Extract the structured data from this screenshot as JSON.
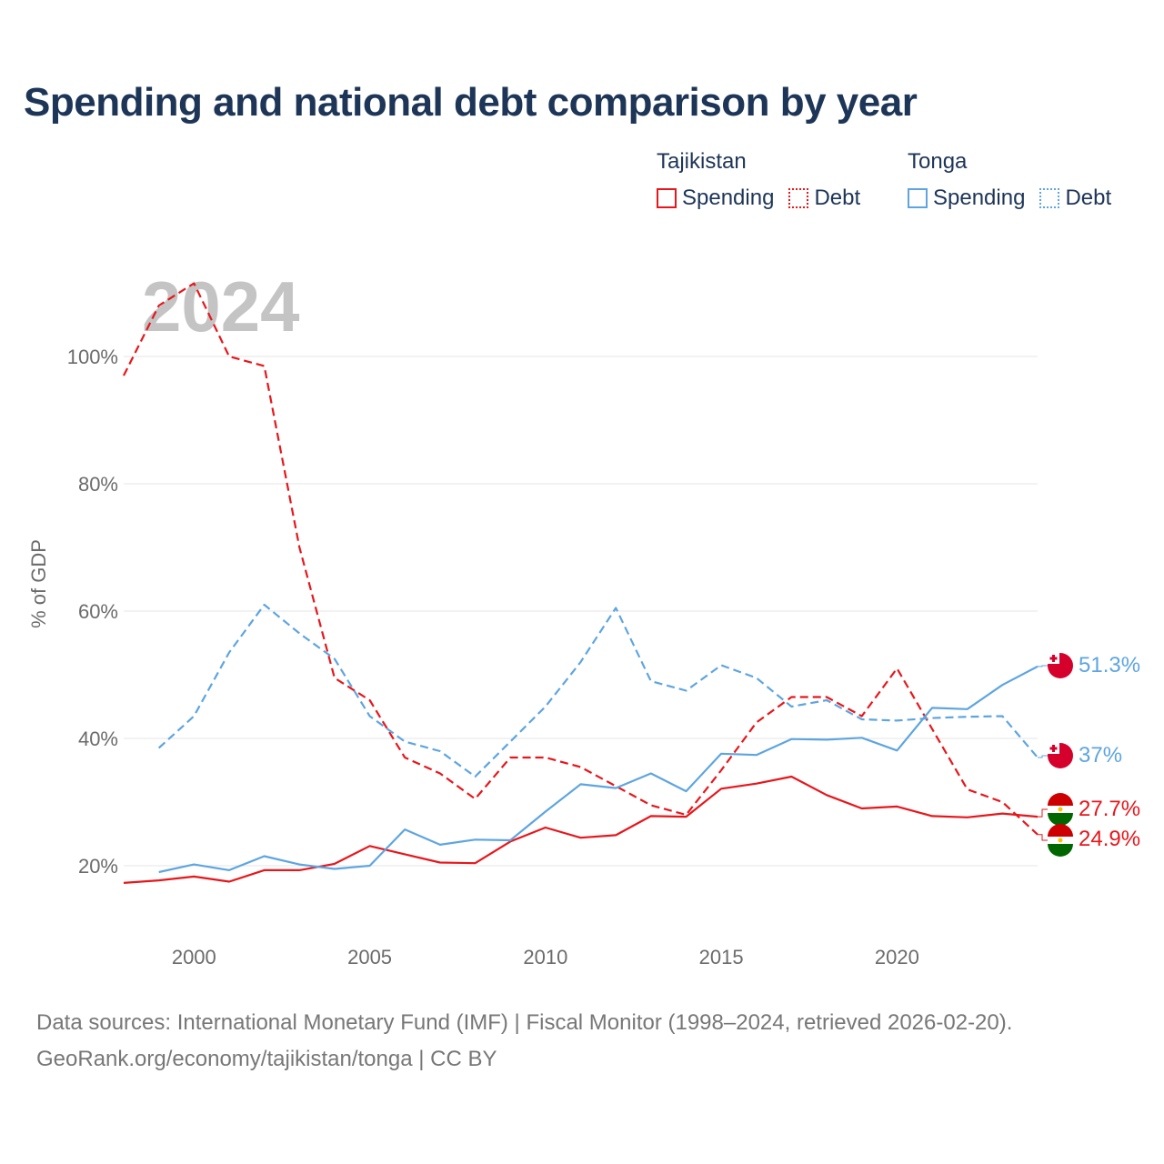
{
  "title": "Spending and national debt comparison by year",
  "legend": {
    "groups": [
      {
        "country": "Tajikistan",
        "color": "#e8161b",
        "items": [
          {
            "label": "Spending",
            "style": "solid"
          },
          {
            "label": "Debt",
            "style": "dotted"
          }
        ]
      },
      {
        "country": "Tonga",
        "color": "#5ea5e0",
        "items": [
          {
            "label": "Spending",
            "style": "solid"
          },
          {
            "label": "Debt",
            "style": "dotted"
          }
        ]
      }
    ]
  },
  "footer": {
    "line1": "Data sources: International Monetary Fund (IMF) | Fiscal Monitor (1998–2024, retrieved 2026-02-20).",
    "line2": "GeoRank.org/economy/tajikistan/tonga | CC BY"
  },
  "chart_data": {
    "type": "line",
    "title": "Spending and national debt comparison by year",
    "watermark_year": "2024",
    "ylabel": "% of GDP",
    "xlabel": "",
    "xlim": [
      1998,
      2024
    ],
    "ylim": [
      10,
      115
    ],
    "y_ticks": [
      20,
      40,
      60,
      80,
      100
    ],
    "y_tick_labels": [
      "20%",
      "40%",
      "60%",
      "80%",
      "100%"
    ],
    "x_ticks": [
      2000,
      2005,
      2010,
      2015,
      2020
    ],
    "x_tick_labels": [
      "2000",
      "2005",
      "2010",
      "2015",
      "2020"
    ],
    "grid": true,
    "series": [
      {
        "name": "Tajikistan Debt",
        "country": "Tajikistan",
        "measure": "Debt",
        "color": "#e8161b",
        "dash": true,
        "x": [
          1998,
          1999,
          2000,
          2001,
          2002,
          2003,
          2004,
          2005,
          2006,
          2007,
          2008,
          2009,
          2010,
          2011,
          2012,
          2013,
          2014,
          2015,
          2016,
          2017,
          2018,
          2019,
          2020,
          2021,
          2022,
          2023,
          2024
        ],
        "values": [
          97,
          108,
          111.5,
          100,
          98.5,
          70,
          49.5,
          46,
          37,
          34.5,
          30.5,
          37,
          37,
          35.5,
          32.5,
          29.5,
          28,
          35,
          42.5,
          46.5,
          46.5,
          43.5,
          51,
          41.5,
          32,
          30,
          24.9
        ],
        "end_label": "24.9%"
      },
      {
        "name": "Tonga Debt",
        "country": "Tonga",
        "measure": "Debt",
        "color": "#5ea5e0",
        "dash": true,
        "x": [
          1999,
          2000,
          2001,
          2002,
          2003,
          2004,
          2005,
          2006,
          2007,
          2008,
          2009,
          2010,
          2011,
          2012,
          2013,
          2014,
          2015,
          2016,
          2017,
          2018,
          2019,
          2020,
          2021,
          2022,
          2023,
          2024
        ],
        "values": [
          38.5,
          43.5,
          53.5,
          61,
          56.5,
          52.5,
          43.5,
          39.5,
          38,
          34,
          39.5,
          45,
          52,
          60.5,
          49,
          47.5,
          51.5,
          49.5,
          45,
          46,
          43,
          42.8,
          43.2,
          43.4,
          43.5,
          37
        ],
        "end_label": "37%"
      },
      {
        "name": "Tajikistan Spending",
        "country": "Tajikistan",
        "measure": "Spending",
        "color": "#e8161b",
        "dash": false,
        "x": [
          1998,
          1999,
          2000,
          2001,
          2002,
          2003,
          2004,
          2005,
          2006,
          2007,
          2008,
          2009,
          2010,
          2011,
          2012,
          2013,
          2014,
          2015,
          2016,
          2017,
          2018,
          2019,
          2020,
          2021,
          2022,
          2023,
          2024
        ],
        "values": [
          17.3,
          17.7,
          18.3,
          17.5,
          19.3,
          19.3,
          20.3,
          23.1,
          21.8,
          20.5,
          20.4,
          23.8,
          26,
          24.4,
          24.8,
          27.8,
          27.7,
          32.1,
          32.9,
          34,
          31.1,
          29,
          29.3,
          27.8,
          27.6,
          28.2,
          27.7
        ],
        "end_label": "27.7%"
      },
      {
        "name": "Tonga Spending",
        "country": "Tonga",
        "measure": "Spending",
        "color": "#5ea5e0",
        "dash": false,
        "x": [
          1999,
          2000,
          2001,
          2002,
          2003,
          2004,
          2005,
          2006,
          2007,
          2008,
          2009,
          2010,
          2011,
          2012,
          2013,
          2014,
          2015,
          2016,
          2017,
          2018,
          2019,
          2020,
          2021,
          2022,
          2023,
          2024
        ],
        "values": [
          19,
          20.2,
          19.3,
          21.5,
          20.2,
          19.5,
          20,
          25.7,
          23.3,
          24.1,
          24,
          28.5,
          32.8,
          32.2,
          34.5,
          31.7,
          37.6,
          37.4,
          39.9,
          39.8,
          40.1,
          38.1,
          44.8,
          44.6,
          48.4,
          51.3
        ],
        "end_label": "51.3%"
      }
    ]
  }
}
